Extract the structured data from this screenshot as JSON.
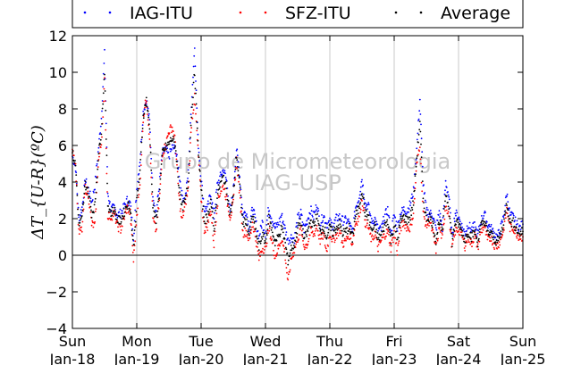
{
  "chart_data": {
    "type": "scatter",
    "ylabel": "ΔT_{U-R}(ºC)",
    "ylim": [
      -4,
      12
    ],
    "yticks": [
      -4,
      -2,
      0,
      2,
      4,
      6,
      8,
      10,
      12
    ],
    "ytick_labels": [
      "−4",
      "−2",
      "0",
      "2",
      "4",
      "6",
      "8",
      "10",
      "12"
    ],
    "xlim": [
      0,
      7
    ],
    "xticks": [
      0,
      1,
      2,
      3,
      4,
      5,
      6,
      7
    ],
    "xtick_labels": [
      [
        "Sun",
        "Jan-18"
      ],
      [
        "Mon",
        "Jan-19"
      ],
      [
        "Tue",
        "Jan-20"
      ],
      [
        "Wed",
        "Jan-21"
      ],
      [
        "Thu",
        "Jan-22"
      ],
      [
        "Fri",
        "Jan-23"
      ],
      [
        "Sat",
        "Jan-24"
      ],
      [
        "Sun",
        "Jan-25"
      ]
    ],
    "grid": "vertical",
    "zero_line": true,
    "legend_position": "top",
    "watermark": [
      "Grupo de Micrometeorologia",
      "IAG-USP"
    ],
    "series": [
      {
        "name": "IAG-ITU",
        "color": "#0000ff",
        "x": [
          0.0,
          0.05,
          0.1,
          0.15,
          0.2,
          0.25,
          0.3,
          0.35,
          0.4,
          0.45,
          0.5,
          0.55,
          0.6,
          0.65,
          0.7,
          0.75,
          0.8,
          0.85,
          0.9,
          0.95,
          1.0,
          1.05,
          1.1,
          1.15,
          1.2,
          1.25,
          1.3,
          1.35,
          1.4,
          1.45,
          1.5,
          1.55,
          1.6,
          1.65,
          1.7,
          1.75,
          1.8,
          1.85,
          1.9,
          1.95,
          2.0,
          2.05,
          2.1,
          2.15,
          2.2,
          2.25,
          2.3,
          2.35,
          2.4,
          2.45,
          2.5,
          2.55,
          2.6,
          2.65,
          2.7,
          2.75,
          2.8,
          2.85,
          2.9,
          2.95,
          3.0,
          3.05,
          3.1,
          3.15,
          3.2,
          3.25,
          3.3,
          3.35,
          3.4,
          3.45,
          3.5,
          3.55,
          3.6,
          3.65,
          3.7,
          3.75,
          3.8,
          3.85,
          3.9,
          3.95,
          4.0,
          4.05,
          4.1,
          4.15,
          4.2,
          4.25,
          4.3,
          4.35,
          4.4,
          4.45,
          4.5,
          4.55,
          4.6,
          4.65,
          4.7,
          4.75,
          4.8,
          4.85,
          4.9,
          4.95,
          5.0,
          5.05,
          5.1,
          5.15,
          5.2,
          5.25,
          5.3,
          5.35,
          5.4,
          5.45,
          5.5,
          5.55,
          5.6,
          5.65,
          5.7,
          5.75,
          5.8,
          5.85,
          5.9,
          5.95,
          6.0,
          6.05,
          6.1,
          6.15,
          6.2,
          6.25,
          6.3,
          6.35,
          6.4,
          6.45,
          6.5,
          6.55,
          6.6,
          6.65,
          6.7,
          6.75,
          6.8,
          6.85,
          6.9,
          6.95,
          7.0
        ],
        "y": [
          5.4,
          4.8,
          2.0,
          2.6,
          4.1,
          3.6,
          2.9,
          3.8,
          5.6,
          7.5,
          11.0,
          3.4,
          2.5,
          2.6,
          2.2,
          2.3,
          2.6,
          3.0,
          2.8,
          1.0,
          3.6,
          5.2,
          7.8,
          8.5,
          7.3,
          3.4,
          2.2,
          3.8,
          5.6,
          5.8,
          5.4,
          5.9,
          5.8,
          4.7,
          3.3,
          3.0,
          4.5,
          8.3,
          11.4,
          6.4,
          4.2,
          2.5,
          2.6,
          3.4,
          2.1,
          3.8,
          4.3,
          4.7,
          4.0,
          2.3,
          3.6,
          5.8,
          4.3,
          2.2,
          2.4,
          1.5,
          2.6,
          1.8,
          1.0,
          1.8,
          1.2,
          2.6,
          2.0,
          1.5,
          1.7,
          2.2,
          1.5,
          0.8,
          1.0,
          0.9,
          2.0,
          2.3,
          1.4,
          1.9,
          2.5,
          2.1,
          2.8,
          1.7,
          2.2,
          1.7,
          1.8,
          1.6,
          2.0,
          2.1,
          1.9,
          1.9,
          1.8,
          1.2,
          2.6,
          3.1,
          4.2,
          2.8,
          2.7,
          1.8,
          2.0,
          1.4,
          1.4,
          2.1,
          2.5,
          1.2,
          2.2,
          1.5,
          2.3,
          2.5,
          2.4,
          2.8,
          3.5,
          5.8,
          8.5,
          4.0,
          2.4,
          2.3,
          2.2,
          1.4,
          2.4,
          1.5,
          4.0,
          3.2,
          1.0,
          2.3,
          2.1,
          1.6,
          1.2,
          1.7,
          1.4,
          1.6,
          1.1,
          1.9,
          2.3,
          1.7,
          1.5,
          1.2,
          1.0,
          1.4,
          2.1,
          3.4,
          2.2,
          2.1,
          1.7,
          1.5,
          1.7
        ]
      },
      {
        "name": "SFZ-ITU",
        "color": "#ff0000",
        "x": [
          0.0,
          0.05,
          0.1,
          0.15,
          0.2,
          0.25,
          0.3,
          0.35,
          0.4,
          0.45,
          0.5,
          0.55,
          0.6,
          0.65,
          0.7,
          0.75,
          0.8,
          0.85,
          0.9,
          0.95,
          1.0,
          1.05,
          1.1,
          1.15,
          1.2,
          1.25,
          1.3,
          1.35,
          1.4,
          1.45,
          1.5,
          1.55,
          1.6,
          1.65,
          1.7,
          1.75,
          1.8,
          1.85,
          1.9,
          1.95,
          2.0,
          2.05,
          2.1,
          2.15,
          2.2,
          2.25,
          2.3,
          2.35,
          2.4,
          2.45,
          2.5,
          2.55,
          2.6,
          2.65,
          2.7,
          2.75,
          2.8,
          2.85,
          2.9,
          2.95,
          3.0,
          3.05,
          3.1,
          3.15,
          3.2,
          3.25,
          3.3,
          3.35,
          3.4,
          3.45,
          3.5,
          3.55,
          3.6,
          3.65,
          3.7,
          3.75,
          3.8,
          3.85,
          3.9,
          3.95,
          4.0,
          4.05,
          4.1,
          4.15,
          4.2,
          4.25,
          4.3,
          4.35,
          4.4,
          4.45,
          4.5,
          4.55,
          4.6,
          4.65,
          4.7,
          4.75,
          4.8,
          4.85,
          4.9,
          4.95,
          5.0,
          5.05,
          5.1,
          5.15,
          5.2,
          5.25,
          5.3,
          5.35,
          5.4,
          5.45,
          5.5,
          5.55,
          5.6,
          5.65,
          5.7,
          5.75,
          5.8,
          5.85,
          5.9,
          5.95,
          6.0,
          6.05,
          6.1,
          6.15,
          6.2,
          6.25,
          6.3,
          6.35,
          6.4,
          6.45,
          6.5,
          6.55,
          6.6,
          6.65,
          6.7,
          6.75,
          6.8,
          6.85,
          6.9,
          6.95,
          7.0
        ],
        "y": [
          6.0,
          4.9,
          1.2,
          1.4,
          3.7,
          3.3,
          1.7,
          1.6,
          5.0,
          6.1,
          9.5,
          2.2,
          2.1,
          2.3,
          1.6,
          1.4,
          2.0,
          2.6,
          2.3,
          -0.3,
          2.2,
          3.8,
          7.5,
          8.6,
          6.5,
          2.0,
          1.3,
          2.9,
          5.6,
          6.0,
          6.8,
          7.0,
          6.2,
          3.4,
          1.9,
          2.7,
          3.6,
          7.2,
          8.6,
          5.8,
          3.1,
          1.4,
          1.6,
          2.5,
          0.6,
          2.8,
          3.5,
          3.8,
          3.0,
          2.1,
          2.8,
          5.2,
          3.3,
          1.2,
          1.3,
          0.8,
          1.8,
          0.9,
          -0.2,
          0.4,
          0.3,
          1.5,
          0.8,
          -0.1,
          0.4,
          0.9,
          0.2,
          -1.5,
          -0.2,
          0.3,
          0.9,
          1.4,
          0.5,
          0.6,
          1.3,
          1.1,
          1.6,
          0.8,
          1.1,
          0.2,
          1.2,
          0.8,
          1.1,
          1.4,
          0.6,
          0.8,
          1.2,
          0.6,
          1.8,
          2.0,
          3.1,
          1.8,
          1.5,
          0.8,
          1.2,
          0.4,
          0.8,
          1.1,
          1.3,
          0.4,
          1.2,
          0.2,
          1.5,
          1.8,
          1.5,
          1.5,
          2.3,
          4.9,
          6.1,
          2.3,
          1.6,
          1.9,
          1.2,
          0.3,
          1.5,
          0.9,
          2.8,
          2.2,
          0.4,
          1.3,
          1.4,
          1.1,
          0.5,
          1.0,
          0.6,
          1.1,
          0.4,
          1.3,
          1.6,
          0.8,
          1.0,
          0.6,
          0.5,
          0.8,
          1.4,
          2.5,
          1.5,
          1.5,
          1.2,
          1.0,
          1.0
        ]
      },
      {
        "name": "Average",
        "color": "#000000",
        "x": [
          0.0,
          0.05,
          0.1,
          0.15,
          0.2,
          0.25,
          0.3,
          0.35,
          0.4,
          0.45,
          0.5,
          0.55,
          0.6,
          0.65,
          0.7,
          0.75,
          0.8,
          0.85,
          0.9,
          0.95,
          1.0,
          1.05,
          1.1,
          1.15,
          1.2,
          1.25,
          1.3,
          1.35,
          1.4,
          1.45,
          1.5,
          1.55,
          1.6,
          1.65,
          1.7,
          1.75,
          1.8,
          1.85,
          1.9,
          1.95,
          2.0,
          2.05,
          2.1,
          2.15,
          2.2,
          2.25,
          2.3,
          2.35,
          2.4,
          2.45,
          2.5,
          2.55,
          2.6,
          2.65,
          2.7,
          2.75,
          2.8,
          2.85,
          2.9,
          2.95,
          3.0,
          3.05,
          3.1,
          3.15,
          3.2,
          3.25,
          3.3,
          3.35,
          3.4,
          3.45,
          3.5,
          3.55,
          3.6,
          3.65,
          3.7,
          3.75,
          3.8,
          3.85,
          3.9,
          3.95,
          4.0,
          4.05,
          4.1,
          4.15,
          4.2,
          4.25,
          4.3,
          4.35,
          4.4,
          4.45,
          4.5,
          4.55,
          4.6,
          4.65,
          4.7,
          4.75,
          4.8,
          4.85,
          4.9,
          4.95,
          5.0,
          5.05,
          5.1,
          5.15,
          5.2,
          5.25,
          5.3,
          5.35,
          5.4,
          5.45,
          5.5,
          5.55,
          5.6,
          5.65,
          5.7,
          5.75,
          5.8,
          5.85,
          5.9,
          5.95,
          6.0,
          6.05,
          6.1,
          6.15,
          6.2,
          6.25,
          6.3,
          6.35,
          6.4,
          6.45,
          6.5,
          6.55,
          6.6,
          6.65,
          6.7,
          6.75,
          6.8,
          6.85,
          6.9,
          6.95,
          7.0
        ],
        "y": [
          5.6,
          4.9,
          1.6,
          2.0,
          3.9,
          3.4,
          2.3,
          2.7,
          5.3,
          6.8,
          10.1,
          2.8,
          2.3,
          2.5,
          1.9,
          1.9,
          2.3,
          2.8,
          2.6,
          0.4,
          2.9,
          4.5,
          7.6,
          8.5,
          6.9,
          2.7,
          1.8,
          3.3,
          5.6,
          5.9,
          6.1,
          6.4,
          6.0,
          4.0,
          2.6,
          2.9,
          4.0,
          7.7,
          10.0,
          6.1,
          3.6,
          1.9,
          2.1,
          3.0,
          1.3,
          3.3,
          3.9,
          4.3,
          3.5,
          2.2,
          3.2,
          5.5,
          3.8,
          1.7,
          1.9,
          1.1,
          2.2,
          1.3,
          0.4,
          1.1,
          0.7,
          2.0,
          1.4,
          0.7,
          1.0,
          1.5,
          0.8,
          -0.3,
          0.4,
          0.6,
          1.5,
          1.8,
          0.9,
          1.2,
          1.9,
          1.6,
          2.2,
          1.2,
          1.6,
          1.0,
          1.5,
          1.2,
          1.5,
          1.7,
          1.2,
          1.3,
          1.5,
          0.9,
          2.2,
          2.5,
          3.6,
          2.3,
          2.1,
          1.3,
          1.6,
          0.9,
          1.1,
          1.6,
          1.9,
          0.8,
          1.7,
          0.8,
          1.9,
          2.1,
          1.9,
          2.1,
          2.9,
          5.3,
          7.3,
          3.1,
          2.0,
          2.1,
          1.7,
          0.8,
          1.9,
          1.2,
          3.4,
          2.7,
          0.7,
          1.8,
          1.7,
          1.3,
          0.8,
          1.3,
          1.0,
          1.3,
          0.7,
          1.6,
          1.9,
          1.2,
          1.2,
          0.9,
          0.7,
          1.1,
          1.7,
          2.9,
          1.8,
          1.8,
          1.4,
          1.2,
          1.3
        ]
      }
    ]
  }
}
